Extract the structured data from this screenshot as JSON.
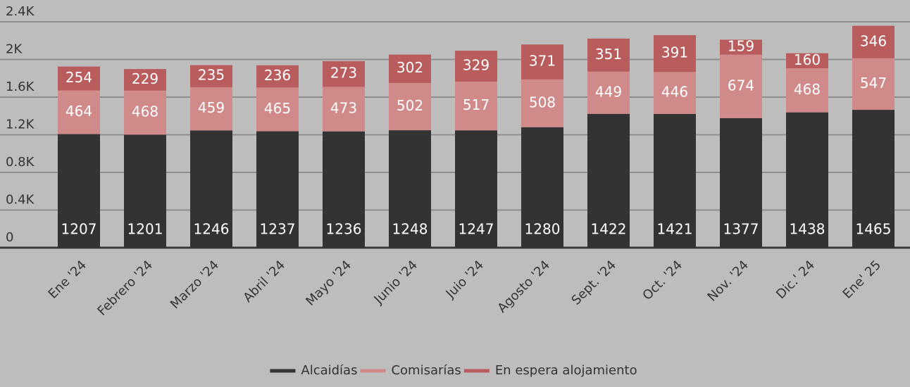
{
  "chart_data": {
    "type": "stacked_bar",
    "categories": [
      "Ene '24",
      "Febrero '24",
      "Marzo '24",
      "Abril '24",
      "Mayo '24",
      "Junio '24",
      "Juio '24",
      "Agosto '24",
      "Sept. '24",
      "Oct. '24",
      "Nov. '24",
      "Dic.' 24",
      "Ene' 25"
    ],
    "series": [
      {
        "name": "Alcaidías",
        "color": "#333333",
        "values": [
          1207,
          1201,
          1246,
          1237,
          1236,
          1248,
          1247,
          1280,
          1422,
          1421,
          1377,
          1438,
          1465
        ]
      },
      {
        "name": "Comisarías",
        "color": "#d08a89",
        "values": [
          464,
          468,
          459,
          465,
          473,
          502,
          517,
          508,
          449,
          446,
          674,
          468,
          547
        ]
      },
      {
        "name": "En espera alojamiento",
        "color": "#b85c5d",
        "values": [
          254,
          229,
          235,
          236,
          273,
          302,
          329,
          371,
          351,
          391,
          159,
          160,
          346
        ]
      }
    ],
    "ylim": [
      0,
      2400
    ],
    "yticks": [
      0,
      {
        "value": 400,
        "label": "0.4K"
      },
      {
        "value": 800,
        "label": "0.8K"
      },
      {
        "value": 1200,
        "label": "1.2K"
      },
      {
        "value": 1600,
        "label": "1.6K"
      },
      {
        "value": 2000,
        "label": "2K"
      },
      {
        "value": 2400,
        "label": "2.4K"
      }
    ],
    "grid": true,
    "legend": "bottom"
  }
}
